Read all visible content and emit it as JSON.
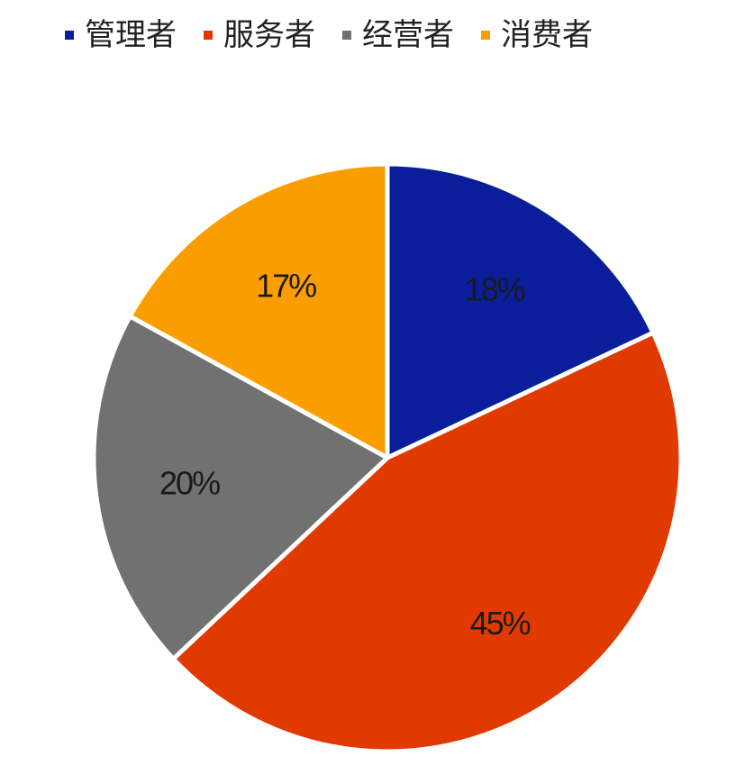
{
  "chart_data": {
    "type": "pie",
    "legend_position": "top",
    "slices": [
      {
        "name": "管理者",
        "value": 18,
        "label": "18%",
        "color": "#0A1E9B"
      },
      {
        "name": "服务者",
        "value": 45,
        "label": "45%",
        "color": "#E03A00"
      },
      {
        "name": "经营者",
        "value": 20,
        "label": "20%",
        "color": "#717171"
      },
      {
        "name": "消费者",
        "value": 17,
        "label": "17%",
        "color": "#FA9E00"
      }
    ]
  }
}
